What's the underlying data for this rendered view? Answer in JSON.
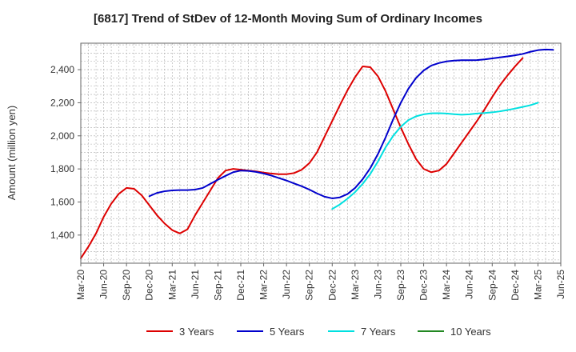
{
  "chart_data": {
    "type": "line",
    "title": "[6817]  Trend of StDev of 12-Month Moving Sum of Ordinary Incomes",
    "xlabel": "",
    "ylabel": "Amount (million yen)",
    "ylim": [
      1230,
      2560
    ],
    "yticks": [
      1400,
      1600,
      1800,
      2000,
      2200,
      2400
    ],
    "ytick_labels": [
      "1,400",
      "1,600",
      "1,800",
      "2,000",
      "2,200",
      "2,400"
    ],
    "x_start": "Mar-20",
    "x_ticks": [
      "Mar-20",
      "Jun-20",
      "Sep-20",
      "Dec-20",
      "Mar-21",
      "Jun-21",
      "Sep-21",
      "Dec-21",
      "Mar-22",
      "Jun-22",
      "Sep-22",
      "Dec-22",
      "Mar-23",
      "Jun-23",
      "Sep-23",
      "Dec-23",
      "Mar-24",
      "Jun-24",
      "Sep-24",
      "Dec-24",
      "Mar-25",
      "Jun-25"
    ],
    "grid": true,
    "legend_position": "bottom",
    "series": [
      {
        "name": "3 Years",
        "color": "#dd0000",
        "start_month_index": 0,
        "values": [
          1260,
          1330,
          1410,
          1510,
          1590,
          1650,
          1685,
          1680,
          1640,
          1580,
          1520,
          1470,
          1430,
          1410,
          1435,
          1520,
          1595,
          1670,
          1745,
          1790,
          1800,
          1795,
          1790,
          1785,
          1778,
          1772,
          1768,
          1768,
          1775,
          1795,
          1835,
          1900,
          1995,
          2090,
          2185,
          2275,
          2355,
          2420,
          2415,
          2360,
          2270,
          2160,
          2050,
          1950,
          1860,
          1800,
          1780,
          1790,
          1830,
          1895,
          1960,
          2025,
          2090,
          2160,
          2235,
          2305,
          2365,
          2420,
          2470
        ]
      },
      {
        "name": "5 Years",
        "color": "#0000cc",
        "start_month_index": 9,
        "values": [
          1635,
          1655,
          1665,
          1670,
          1672,
          1672,
          1675,
          1685,
          1710,
          1735,
          1758,
          1780,
          1790,
          1788,
          1782,
          1772,
          1760,
          1745,
          1730,
          1712,
          1695,
          1675,
          1652,
          1632,
          1622,
          1628,
          1648,
          1685,
          1738,
          1805,
          1890,
          1990,
          2100,
          2200,
          2285,
          2350,
          2395,
          2425,
          2440,
          2450,
          2455,
          2457,
          2457,
          2458,
          2462,
          2468,
          2474,
          2480,
          2487,
          2495,
          2508,
          2518,
          2522,
          2520
        ]
      },
      {
        "name": "7 Years",
        "color": "#00e0e0",
        "start_month_index": 33,
        "values": [
          1558,
          1585,
          1620,
          1660,
          1710,
          1770,
          1845,
          1930,
          2000,
          2055,
          2095,
          2118,
          2130,
          2136,
          2137,
          2135,
          2131,
          2128,
          2130,
          2135,
          2138,
          2142,
          2148,
          2156,
          2165,
          2175,
          2185,
          2200
        ]
      },
      {
        "name": "10 Years",
        "color": "#228822",
        "start_month_index": 0,
        "values": []
      }
    ]
  }
}
